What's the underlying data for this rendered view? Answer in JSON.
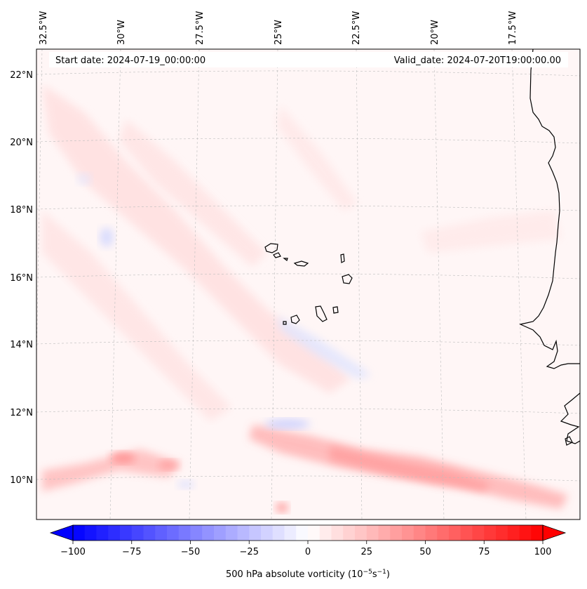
{
  "map": {
    "start_date": "Start date: 2024-07-19_00:00:00",
    "valid_date": "Valid_date: 2024-07-20T19:00:00.00",
    "lon_labels": [
      "32.5°W",
      "30°W",
      "27.5°W",
      "25°W",
      "22.5°W",
      "20°W",
      "17.5°W"
    ],
    "lat_labels": [
      "22°N",
      "20°N",
      "18°N",
      "16°N",
      "14°N",
      "12°N",
      "10°N"
    ],
    "field": "500 hPa absolute vorticity",
    "colorbar": {
      "label": "500 hPa absolute vorticity (10",
      "label_exp1": "−5",
      "label_mid": "s",
      "label_exp2": "−1",
      "label_end": ")",
      "min": -100,
      "max": 100,
      "ticks": [
        "−100",
        "−75",
        "−50",
        "−25",
        "0",
        "25",
        "50",
        "75",
        "100"
      ],
      "cmap": "bwr",
      "colors": {
        "low": "#0000ff",
        "mid": "#ffffff",
        "high": "#ff0000"
      }
    },
    "features": [
      "Cape Verde islands",
      "West African coastline"
    ]
  }
}
